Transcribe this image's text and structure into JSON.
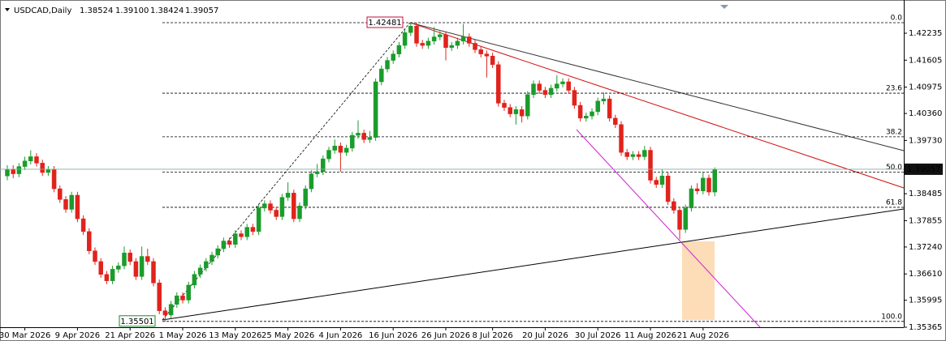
{
  "chart_data": {
    "type": "candlestick",
    "symbol": "USDCAD,Daily",
    "ohlc_labels": [
      "1.38524",
      "1.39100",
      "1.38424",
      "1.39057"
    ],
    "xlim": [
      -1.25,
      153.33
    ],
    "ylim": [
      1.35365,
      1.43011
    ],
    "xticks": [
      {
        "value": 3,
        "label": "30 Mar 2026"
      },
      {
        "value": 12,
        "label": "9 Apr 2026"
      },
      {
        "value": 21,
        "label": "21 Apr 2026"
      },
      {
        "value": 30,
        "label": "1 May 2026"
      },
      {
        "value": 39,
        "label": "13 May 2026"
      },
      {
        "value": 48,
        "label": "25 May 2026"
      },
      {
        "value": 57,
        "label": "4 Jun 2026"
      },
      {
        "value": 66,
        "label": "16 Jun 2026"
      },
      {
        "value": 75,
        "label": "26 Jun 2026"
      },
      {
        "value": 83,
        "label": "8 Jul 2026"
      },
      {
        "value": 92,
        "label": "20 Jul 2026"
      },
      {
        "value": 101,
        "label": "30 Jul 2026"
      },
      {
        "value": 110,
        "label": "11 Aug 2026"
      },
      {
        "value": 119,
        "label": "21 Aug 2026"
      }
    ],
    "yticks": [
      1.42235,
      1.41605,
      1.40975,
      {
        "value": 1.4036,
        "label": "1.40360"
      },
      {
        "value": 1.3973,
        "label": "1.39730"
      },
      1.38485,
      1.37855,
      {
        "value": 1.3724,
        "label": "1.37240"
      },
      {
        "value": 1.3661,
        "label": "1.36610"
      },
      1.35995,
      1.35365
    ],
    "fibo": {
      "high": 1.42481,
      "low": 1.35501,
      "levels": [
        {
          "value": 0,
          "label": "0.0"
        },
        {
          "value": 23.6,
          "label": "23.6"
        },
        {
          "value": 38.2,
          "label": "38.2"
        },
        {
          "value": 50,
          "label": "50.0"
        },
        {
          "value": 61.8,
          "label": "61.8"
        },
        {
          "value": 100,
          "label": "100.0"
        }
      ]
    },
    "up_color": "#1a9c2b",
    "down_color": "#e0231c",
    "candles": [
      [
        1.389,
        1.3915,
        1.388,
        1.3905
      ],
      [
        1.3905,
        1.3915,
        1.3885,
        1.3895
      ],
      [
        1.3895,
        1.392,
        1.3887,
        1.3912
      ],
      [
        1.3912,
        1.3935,
        1.3904,
        1.3925
      ],
      [
        1.3925,
        1.395,
        1.3917,
        1.3935
      ],
      [
        1.3935,
        1.3943,
        1.3912,
        1.392
      ],
      [
        1.392,
        1.3928,
        1.389,
        1.3898
      ],
      [
        1.3898,
        1.3913,
        1.389,
        1.3905
      ],
      [
        1.3905,
        1.3913,
        1.3852,
        1.386
      ],
      [
        1.386,
        1.3868,
        1.3827,
        1.3835
      ],
      [
        1.3835,
        1.3843,
        1.3804,
        1.3812
      ],
      [
        1.3812,
        1.3853,
        1.3804,
        1.3845
      ],
      [
        1.3845,
        1.3853,
        1.3782,
        1.379
      ],
      [
        1.379,
        1.3798,
        1.3752,
        1.376
      ],
      [
        1.376,
        1.3768,
        1.3707,
        1.3715
      ],
      [
        1.3715,
        1.3723,
        1.3682,
        1.369
      ],
      [
        1.369,
        1.3698,
        1.3652,
        1.366
      ],
      [
        1.366,
        1.3668,
        1.3637,
        1.3645
      ],
      [
        1.3645,
        1.368,
        1.3637,
        1.3672
      ],
      [
        1.3672,
        1.3688,
        1.3664,
        1.368
      ],
      [
        1.368,
        1.3725,
        1.3672,
        1.371
      ],
      [
        1.371,
        1.3718,
        1.3682,
        1.369
      ],
      [
        1.369,
        1.3698,
        1.3647,
        1.3655
      ],
      [
        1.3655,
        1.3725,
        1.3647,
        1.3702
      ],
      [
        1.3702,
        1.372,
        1.3682,
        1.369
      ],
      [
        1.369,
        1.3698,
        1.3632,
        1.364
      ],
      [
        1.364,
        1.3648,
        1.3567,
        1.3575
      ],
      [
        1.3575,
        1.3583,
        1.35501,
        1.3565
      ],
      [
        1.3565,
        1.3598,
        1.3557,
        1.359
      ],
      [
        1.359,
        1.3618,
        1.3582,
        1.361
      ],
      [
        1.361,
        1.3618,
        1.3592,
        1.36
      ],
      [
        1.36,
        1.3643,
        1.3592,
        1.3635
      ],
      [
        1.3635,
        1.3668,
        1.3627,
        1.366
      ],
      [
        1.366,
        1.3683,
        1.3652,
        1.3675
      ],
      [
        1.3675,
        1.3698,
        1.3667,
        1.369
      ],
      [
        1.369,
        1.3713,
        1.3682,
        1.3705
      ],
      [
        1.3705,
        1.3728,
        1.3697,
        1.372
      ],
      [
        1.372,
        1.3746,
        1.3712,
        1.3738
      ],
      [
        1.3738,
        1.3746,
        1.3722,
        1.373
      ],
      [
        1.373,
        1.3763,
        1.3722,
        1.3755
      ],
      [
        1.3755,
        1.3763,
        1.374,
        1.3748
      ],
      [
        1.3748,
        1.3778,
        1.374,
        1.377
      ],
      [
        1.377,
        1.3778,
        1.3752,
        1.376
      ],
      [
        1.376,
        1.3823,
        1.3752,
        1.3815
      ],
      [
        1.3815,
        1.3833,
        1.3807,
        1.3825
      ],
      [
        1.3825,
        1.3833,
        1.3802,
        1.381
      ],
      [
        1.381,
        1.3818,
        1.3787,
        1.3795
      ],
      [
        1.3795,
        1.3848,
        1.3787,
        1.384
      ],
      [
        1.384,
        1.3875,
        1.3832,
        1.385
      ],
      [
        1.385,
        1.3858,
        1.3782,
        1.379
      ],
      [
        1.379,
        1.3828,
        1.3782,
        1.382
      ],
      [
        1.382,
        1.3868,
        1.3812,
        1.386
      ],
      [
        1.386,
        1.3903,
        1.3852,
        1.3895
      ],
      [
        1.3895,
        1.3918,
        1.3887,
        1.39
      ],
      [
        1.39,
        1.3938,
        1.3892,
        1.393
      ],
      [
        1.393,
        1.3958,
        1.3922,
        1.395
      ],
      [
        1.395,
        1.3975,
        1.3942,
        1.396
      ],
      [
        1.396,
        1.3968,
        1.39,
        1.3945
      ],
      [
        1.3945,
        1.3963,
        1.3937,
        1.3955
      ],
      [
        1.3955,
        1.3993,
        1.3947,
        1.3985
      ],
      [
        1.3985,
        1.402,
        1.3977,
        1.399
      ],
      [
        1.399,
        1.3998,
        1.3967,
        1.3975
      ],
      [
        1.3975,
        1.3995,
        1.3967,
        1.398
      ],
      [
        1.398,
        1.4118,
        1.3972,
        1.411
      ],
      [
        1.411,
        1.4148,
        1.4102,
        1.414
      ],
      [
        1.414,
        1.4168,
        1.4132,
        1.416
      ],
      [
        1.416,
        1.4183,
        1.4152,
        1.4175
      ],
      [
        1.4175,
        1.4203,
        1.4167,
        1.4195
      ],
      [
        1.4195,
        1.4233,
        1.4187,
        1.4225
      ],
      [
        1.4225,
        1.42481,
        1.4217,
        1.424
      ],
      [
        1.424,
        1.4248,
        1.4192,
        1.42
      ],
      [
        1.42,
        1.4208,
        1.4187,
        1.4195
      ],
      [
        1.4195,
        1.4213,
        1.4187,
        1.4205
      ],
      [
        1.4205,
        1.4238,
        1.4197,
        1.4215
      ],
      [
        1.4215,
        1.4228,
        1.4207,
        1.422
      ],
      [
        1.422,
        1.4228,
        1.416,
        1.419
      ],
      [
        1.419,
        1.4203,
        1.4182,
        1.4195
      ],
      [
        1.4195,
        1.4213,
        1.4187,
        1.4205
      ],
      [
        1.4205,
        1.4245,
        1.4197,
        1.4215
      ],
      [
        1.4215,
        1.4223,
        1.4192,
        1.42
      ],
      [
        1.42,
        1.4208,
        1.4177,
        1.4185
      ],
      [
        1.4185,
        1.4193,
        1.4167,
        1.4175
      ],
      [
        1.4175,
        1.4183,
        1.412,
        1.417
      ],
      [
        1.417,
        1.4178,
        1.4142,
        1.415
      ],
      [
        1.415,
        1.4158,
        1.4052,
        1.406
      ],
      [
        1.406,
        1.4068,
        1.4042,
        1.405
      ],
      [
        1.405,
        1.4058,
        1.4027,
        1.4035
      ],
      [
        1.4035,
        1.4053,
        1.401,
        1.4045
      ],
      [
        1.4045,
        1.4053,
        1.4015,
        1.403
      ],
      [
        1.403,
        1.4088,
        1.4022,
        1.408
      ],
      [
        1.408,
        1.4113,
        1.4072,
        1.4105
      ],
      [
        1.4105,
        1.4113,
        1.4082,
        1.409
      ],
      [
        1.409,
        1.4098,
        1.4072,
        1.408
      ],
      [
        1.408,
        1.4103,
        1.4072,
        1.4095
      ],
      [
        1.4095,
        1.4125,
        1.4087,
        1.4105
      ],
      [
        1.4105,
        1.4118,
        1.4097,
        1.411
      ],
      [
        1.411,
        1.4118,
        1.4082,
        1.409
      ],
      [
        1.409,
        1.4098,
        1.4047,
        1.4055
      ],
      [
        1.4055,
        1.4063,
        1.4017,
        1.4025
      ],
      [
        1.4025,
        1.4038,
        1.4017,
        1.403
      ],
      [
        1.403,
        1.4048,
        1.4022,
        1.404
      ],
      [
        1.404,
        1.4073,
        1.4032,
        1.4065
      ],
      [
        1.4065,
        1.4085,
        1.4057,
        1.407
      ],
      [
        1.407,
        1.4078,
        1.4017,
        1.4025
      ],
      [
        1.4025,
        1.4033,
        1.4002,
        1.401
      ],
      [
        1.401,
        1.4018,
        1.3937,
        1.3945
      ],
      [
        1.3945,
        1.3953,
        1.3927,
        1.3935
      ],
      [
        1.3935,
        1.3948,
        1.3927,
        1.394
      ],
      [
        1.394,
        1.3948,
        1.3927,
        1.3935
      ],
      [
        1.3935,
        1.396,
        1.3927,
        1.395
      ],
      [
        1.395,
        1.3958,
        1.3872,
        1.388
      ],
      [
        1.388,
        1.3888,
        1.3862,
        1.387
      ],
      [
        1.387,
        1.3905,
        1.3862,
        1.389
      ],
      [
        1.389,
        1.3898,
        1.3822,
        1.383
      ],
      [
        1.383,
        1.3838,
        1.3802,
        1.381
      ],
      [
        1.381,
        1.3818,
        1.3742,
        1.3765
      ],
      [
        1.3765,
        1.3823,
        1.3757,
        1.3815
      ],
      [
        1.3815,
        1.3868,
        1.3807,
        1.386
      ],
      [
        1.386,
        1.3873,
        1.3847,
        1.3855
      ],
      [
        1.3855,
        1.3898,
        1.3847,
        1.3885
      ],
      [
        1.3885,
        1.3893,
        1.3844,
        1.38524
      ],
      [
        1.38524,
        1.391,
        1.38424,
        1.39057
      ]
    ]
  }
}
